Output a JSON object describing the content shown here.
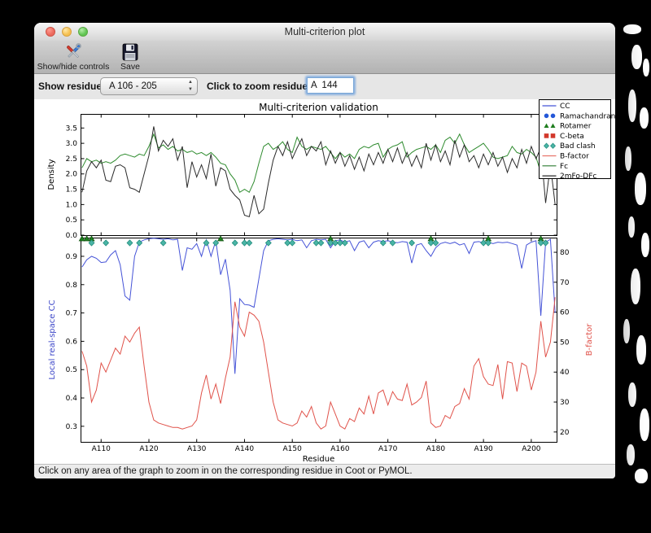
{
  "window": {
    "title": "Multi-criterion plot"
  },
  "toolbar": {
    "items": [
      {
        "label": "Show/hide controls",
        "icon": "tools-icon"
      },
      {
        "label": "Save",
        "icon": "floppy-disk-icon"
      }
    ]
  },
  "controls": {
    "show_residues_label": "Show residues:",
    "residue_range_value": "A 106 - 205",
    "zoom_label": "Click to zoom residue:",
    "zoom_value": "A  144"
  },
  "status_bar": {
    "text": "Click on any area of the graph to zoom in on the corresponding residue in Coot or PyMOL."
  },
  "chart_data": {
    "type": "line",
    "title": "Multi-criterion validation",
    "xlabel": "Residue",
    "x_range": [
      105.7,
      205.3
    ],
    "x_tick_values": [
      110,
      120,
      130,
      140,
      150,
      160,
      170,
      180,
      190,
      200
    ],
    "x_tick_labels": [
      "A110",
      "A120",
      "A130",
      "A140",
      "A150",
      "A160",
      "A170",
      "A180",
      "A190",
      "A200"
    ],
    "grid": false,
    "legend_position": "upper right",
    "panels": {
      "density": {
        "ylabel": "Density",
        "ylabel_color": "#000000",
        "ylim": [
          0,
          3.96
        ],
        "yticks": [
          0,
          0.5,
          1.0,
          1.5,
          2.0,
          2.5,
          3.0,
          3.5
        ]
      },
      "cc_bfactor": {
        "ylabel_left": "Local real-space CC",
        "ylabel_left_color": "#3c46c8",
        "ylim_left": [
          0.245,
          0.966
        ],
        "yticks_left": [
          0.3,
          0.4,
          0.5,
          0.6,
          0.7,
          0.8,
          0.9
        ],
        "ylabel_right": "B-factor",
        "ylabel_right_color": "#e0524a",
        "ylim_right": [
          16.7,
          84.9
        ],
        "yticks_right": [
          20,
          30,
          40,
          50,
          60,
          70,
          80
        ]
      }
    },
    "x_start": 106,
    "x_step": 1,
    "series": [
      {
        "name": "Fc",
        "panel": "density",
        "color": "#2e8b2e",
        "values": [
          2.2,
          2.5,
          2.4,
          2.45,
          2.35,
          2.4,
          2.35,
          2.45,
          2.6,
          2.65,
          2.6,
          2.55,
          2.65,
          2.6,
          2.9,
          3.3,
          2.85,
          2.95,
          2.8,
          2.9,
          2.75,
          2.8,
          2.7,
          2.75,
          2.65,
          2.7,
          2.6,
          2.7,
          2.55,
          2.35,
          2.3,
          2.0,
          1.8,
          1.4,
          1.5,
          1.4,
          1.75,
          2.35,
          2.9,
          3.0,
          2.8,
          2.9,
          3.05,
          2.8,
          2.7,
          3.2,
          2.9,
          2.8,
          2.9,
          2.85,
          2.8,
          2.9,
          2.7,
          2.5,
          2.7,
          2.55,
          2.65,
          2.5,
          2.8,
          2.9,
          2.85,
          2.95,
          3.0,
          2.55,
          2.8,
          2.9,
          2.95,
          3.05,
          2.55,
          2.7,
          2.8,
          2.85,
          2.9,
          2.8,
          2.95,
          2.7,
          3.1,
          3.2,
          3.0,
          3.3,
          2.95,
          2.7,
          2.8,
          2.9,
          3.0,
          2.8,
          2.55,
          2.5,
          2.55,
          2.6,
          2.9,
          2.7,
          2.65,
          2.8,
          2.7,
          2.55,
          2.05,
          2.6,
          2.4,
          2.3
        ]
      },
      {
        "name": "2mFo-DFc",
        "panel": "density",
        "color": "#2b2b2b",
        "values": [
          1.4,
          2.1,
          2.4,
          2.2,
          2.45,
          1.8,
          1.75,
          2.25,
          2.3,
          2.2,
          1.55,
          1.5,
          1.4,
          2.0,
          2.6,
          3.55,
          2.75,
          3.1,
          2.9,
          3.15,
          2.45,
          2.9,
          1.55,
          2.4,
          1.9,
          2.3,
          1.85,
          2.65,
          1.6,
          2.2,
          2.1,
          1.5,
          1.3,
          1.15,
          0.65,
          0.6,
          1.3,
          0.7,
          0.85,
          1.7,
          2.45,
          2.9,
          2.6,
          3.05,
          2.5,
          2.85,
          3.15,
          2.6,
          2.9,
          2.75,
          3.05,
          2.3,
          2.75,
          2.35,
          2.7,
          2.25,
          2.6,
          2.15,
          2.55,
          2.1,
          2.65,
          2.3,
          2.7,
          2.35,
          2.8,
          2.4,
          2.85,
          2.35,
          2.7,
          2.25,
          2.6,
          2.2,
          3.0,
          2.45,
          2.95,
          2.4,
          2.75,
          2.3,
          3.1,
          2.55,
          2.95,
          2.4,
          2.6,
          2.2,
          2.65,
          2.3,
          2.7,
          2.25,
          2.55,
          2.05,
          2.5,
          2.2,
          2.8,
          2.35,
          2.9,
          2.5,
          2.85,
          1.05,
          2.3,
          1.0
        ]
      },
      {
        "name": "CC",
        "panel": "cc_bfactor",
        "axis": "left",
        "color": "#4553d7",
        "values": [
          0.862,
          0.888,
          0.9,
          0.893,
          0.878,
          0.88,
          0.905,
          0.92,
          0.87,
          0.76,
          0.745,
          0.9,
          0.95,
          0.958,
          0.962,
          0.964,
          0.962,
          0.96,
          0.962,
          0.958,
          0.96,
          0.85,
          0.93,
          0.925,
          0.945,
          0.9,
          0.958,
          0.9,
          0.955,
          0.835,
          0.89,
          0.78,
          0.485,
          0.75,
          0.73,
          0.728,
          0.72,
          0.82,
          0.92,
          0.955,
          0.96,
          0.962,
          0.96,
          0.958,
          0.96,
          0.955,
          0.958,
          0.93,
          0.955,
          0.96,
          0.958,
          0.96,
          0.93,
          0.955,
          0.958,
          0.95,
          0.955,
          0.92,
          0.95,
          0.955,
          0.93,
          0.95,
          0.955,
          0.952,
          0.955,
          0.95,
          0.948,
          0.952,
          0.95,
          0.876,
          0.94,
          0.945,
          0.92,
          0.9,
          0.93,
          0.945,
          0.95,
          0.945,
          0.95,
          0.94,
          0.945,
          0.91,
          0.95,
          0.952,
          0.948,
          0.95,
          0.945,
          0.95,
          0.948,
          0.95,
          0.945,
          0.94,
          0.857,
          0.94,
          0.95,
          0.955,
          0.69,
          0.95,
          0.96,
          0.7
        ]
      },
      {
        "name": "B-factor",
        "panel": "cc_bfactor",
        "axis": "right",
        "color": "#e0524a",
        "values": [
          47,
          42,
          30,
          34,
          43,
          40,
          44,
          48,
          46,
          52,
          50,
          53,
          55,
          42,
          30,
          24,
          23,
          22.5,
          22,
          21.5,
          21.5,
          21,
          21.5,
          22,
          24,
          33,
          39,
          31,
          36,
          29.5,
          38,
          45,
          63.5,
          55,
          52,
          60,
          59,
          57,
          50,
          40,
          30,
          24,
          23,
          22.5,
          22,
          23,
          27,
          25,
          28.5,
          23,
          21,
          22,
          30,
          26,
          22,
          21,
          24.5,
          23.5,
          28,
          26,
          32,
          26,
          33,
          34,
          29,
          33.5,
          31,
          30.5,
          36,
          29,
          30,
          31.5,
          37,
          23,
          21.5,
          22,
          25.5,
          24.5,
          28.5,
          29.5,
          34.5,
          31,
          42,
          44.5,
          38.5,
          36,
          35.5,
          42.5,
          31,
          43.5,
          43,
          33.5,
          43,
          42,
          34,
          40,
          57,
          45,
          50,
          65
        ]
      }
    ],
    "markers": [
      {
        "name": "Rotamer",
        "shape": "triangle",
        "fill": "#1e7d1e",
        "edge": "#145214",
        "residues": [
          106,
          107,
          108,
          135,
          158,
          179,
          191,
          202
        ]
      },
      {
        "name": "Bad clash",
        "shape": "diamond",
        "fill": "#4ab5a6",
        "edge": "#1f8a7a",
        "residues": [
          108,
          111,
          116,
          118,
          123,
          132,
          134,
          138,
          140,
          141,
          145,
          149,
          150,
          155,
          156,
          158,
          159,
          160,
          161,
          169,
          171,
          175,
          179,
          180,
          190,
          191,
          202,
          203
        ]
      }
    ],
    "legend": {
      "entries": [
        {
          "label": "CC",
          "type": "line",
          "color": "#4553d7"
        },
        {
          "label": "Ramachandran",
          "type": "circle",
          "color": "#2457d8"
        },
        {
          "label": "Rotamer",
          "type": "triangle",
          "color": "#1e7d1e"
        },
        {
          "label": "C-beta",
          "type": "square",
          "color": "#d2382c"
        },
        {
          "label": "Bad clash",
          "type": "diamond",
          "color": "#4ab5a6"
        },
        {
          "label": "B-factor",
          "type": "line",
          "color": "#e8756b"
        },
        {
          "label": "Fc",
          "type": "line",
          "color": "#2e7d32"
        },
        {
          "label": "2mFo-DFc",
          "type": "line",
          "color": "#2b2b2b"
        }
      ]
    }
  }
}
